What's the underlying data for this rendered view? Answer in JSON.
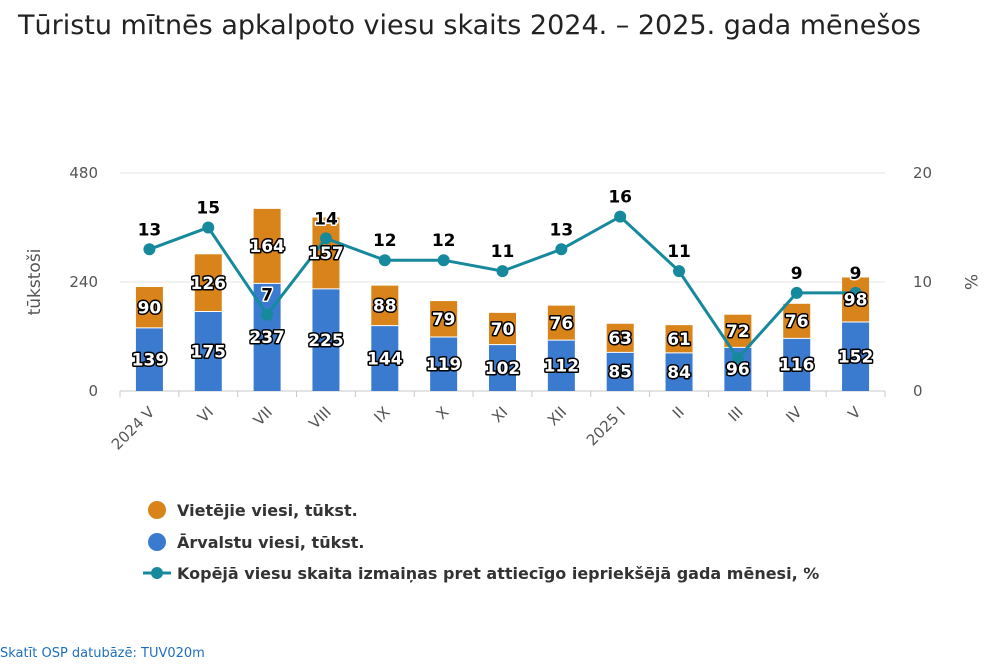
{
  "title": "Tūristu mītnēs apkalpoto viesu skaits 2024. – 2025. gada mēnešos",
  "source_link": "Skatīt OSP datubāzē: TUV020m",
  "chart_data": {
    "type": "bar",
    "stacked": true,
    "categories": [
      "2024 V",
      "VI",
      "VII",
      "VIII",
      "IX",
      "X",
      "XI",
      "XII",
      "2025 I",
      "II",
      "III",
      "IV",
      "V"
    ],
    "series": [
      {
        "name": "Vietējie viesi, tūkst.",
        "type": "bar",
        "axis": "left",
        "color": "#d9841a",
        "values": [
          90,
          126,
          164,
          157,
          88,
          79,
          70,
          76,
          63,
          61,
          72,
          76,
          98
        ]
      },
      {
        "name": "Ārvalstu viesi, tūkst.",
        "type": "bar",
        "axis": "left",
        "color": "#3a7bd0",
        "values": [
          139,
          175,
          237,
          225,
          144,
          119,
          102,
          112,
          85,
          84,
          96,
          116,
          152
        ]
      },
      {
        "name": "Kopējā viesu skaita izmaiņas pret attiecīgo iepriekšējā gada mēnesi, %",
        "type": "line",
        "axis": "right",
        "color": "#168a9c",
        "values": [
          13,
          15,
          7,
          14,
          12,
          12,
          11,
          13,
          16,
          11,
          3,
          9,
          9
        ],
        "value_labels": [
          "13",
          "15",
          "7",
          "14",
          "12",
          "12",
          "11",
          "13",
          "16",
          "11",
          "",
          "9",
          "9"
        ]
      }
    ],
    "y_left": {
      "label": "tūkstoši",
      "min": 0,
      "max": 480,
      "ticks": [
        "0",
        "240",
        "480"
      ]
    },
    "y_right": {
      "label": "%",
      "min": 0,
      "max": 20,
      "ticks": [
        "0",
        "10",
        "20"
      ]
    },
    "grid": true,
    "legend_position": "bottom-left"
  }
}
